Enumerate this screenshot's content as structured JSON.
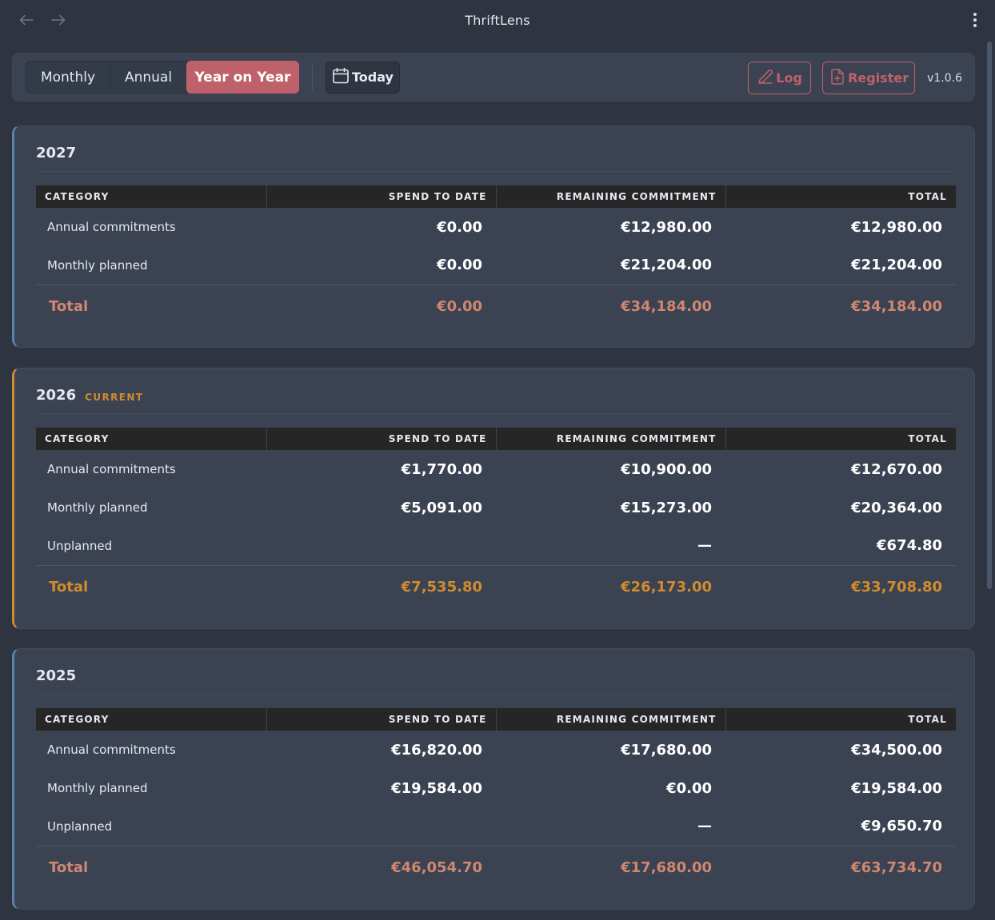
{
  "app": {
    "title": "ThriftLens",
    "version": "v1.0.6"
  },
  "toolbar": {
    "tabs": [
      "Monthly",
      "Annual",
      "Year on Year"
    ],
    "active_tab": "Year on Year",
    "today_label": "Today",
    "log_label": "Log",
    "register_label": "Register"
  },
  "columns": [
    "CATEGORY",
    "SPEND TO DATE",
    "REMAINING COMMITMENT",
    "TOTAL"
  ],
  "years": [
    {
      "year": "2027",
      "badge": "",
      "rows": [
        {
          "category": "Annual commitments",
          "spend": "€0.00",
          "remaining": "€12,980.00",
          "total": "€12,980.00"
        },
        {
          "category": "Monthly planned",
          "spend": "€0.00",
          "remaining": "€21,204.00",
          "total": "€21,204.00"
        }
      ],
      "total": {
        "label": "Total",
        "spend": "€0.00",
        "remaining": "€34,184.00",
        "total": "€34,184.00"
      }
    },
    {
      "year": "2026",
      "badge": "CURRENT",
      "rows": [
        {
          "category": "Annual commitments",
          "spend": "€1,770.00",
          "remaining": "€10,900.00",
          "total": "€12,670.00"
        },
        {
          "category": "Monthly planned",
          "spend": "€5,091.00",
          "remaining": "€15,273.00",
          "total": "€20,364.00"
        },
        {
          "category": "Unplanned",
          "spend": "",
          "remaining": "—",
          "total": "€674.80"
        }
      ],
      "total": {
        "label": "Total",
        "spend": "€7,535.80",
        "remaining": "€26,173.00",
        "total": "€33,708.80"
      }
    },
    {
      "year": "2025",
      "badge": "",
      "rows": [
        {
          "category": "Annual commitments",
          "spend": "€16,820.00",
          "remaining": "€17,680.00",
          "total": "€34,500.00"
        },
        {
          "category": "Monthly planned",
          "spend": "€19,584.00",
          "remaining": "€0.00",
          "total": "€19,584.00"
        },
        {
          "category": "Unplanned",
          "spend": "",
          "remaining": "—",
          "total": "€9,650.70"
        }
      ],
      "total": {
        "label": "Total",
        "spend": "€46,054.70",
        "remaining": "€17,680.00",
        "total": "€63,734.70"
      }
    }
  ],
  "colors": {
    "background": "#2e3440",
    "card": "#3b4252",
    "accent": "#bf616a",
    "current": "#d08c2e",
    "past_total": "#d08770",
    "past_border": "#5e81ac"
  }
}
